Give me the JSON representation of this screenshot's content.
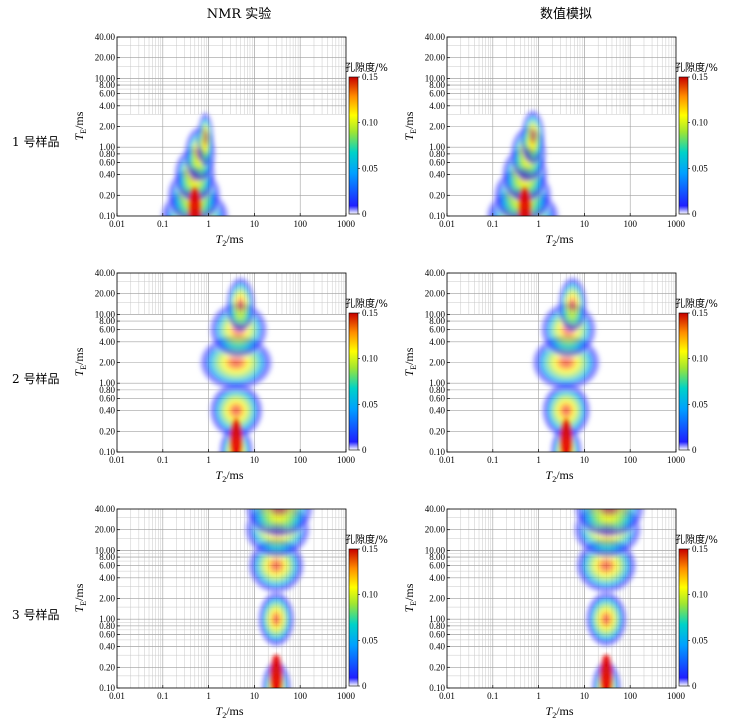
{
  "columns": [
    "NMR 实验",
    "数值模拟"
  ],
  "rows": [
    "1 号样品",
    "2 号样品",
    "3 号样品"
  ],
  "colorbar": {
    "title": "孔隙度/%",
    "ticks": [
      "0",
      "0.05",
      "0.10",
      "0.15"
    ],
    "range": [
      0,
      0.15
    ]
  },
  "axes": {
    "xlabel_main": "T",
    "xlabel_sub": "2",
    "xlabel_unit": "/ms",
    "ylabel_main": "T",
    "ylabel_sub": "E",
    "ylabel_unit": "/ms",
    "xticks": [
      "0.01",
      "0.1",
      "1",
      "10",
      "100",
      "1000"
    ],
    "yticks": [
      "0.10",
      "0.20",
      "0.40",
      "0.60",
      "0.80",
      "1.00",
      "2.00",
      "4.00",
      "6.00",
      "8.00",
      "10.00",
      "20.00",
      "40.00"
    ],
    "xlim": [
      0.01,
      1000
    ],
    "ylim": [
      0.1,
      40
    ],
    "xscale": "log",
    "yscale": "log"
  },
  "colors": {
    "low": "#1a1aff",
    "mid": "#00c8c8",
    "high": "#ffff00",
    "peak": "#e60000",
    "grid": "#9a9a9a"
  },
  "chart_data": [
    {
      "type": "heatmap",
      "panel": "1 号样品 NMR 实验",
      "peak": {
        "T2": 0.5,
        "TE": 0.13
      },
      "ridge": [
        {
          "TE": 0.1,
          "T2": 0.5,
          "w": 1.4
        },
        {
          "TE": 0.2,
          "T2": 0.48,
          "w": 1.1
        },
        {
          "TE": 0.4,
          "T2": 0.5,
          "w": 0.85
        },
        {
          "TE": 0.8,
          "T2": 0.65,
          "w": 0.65
        },
        {
          "TE": 1.3,
          "T2": 0.85,
          "w": 0.35
        }
      ],
      "grid_region": {
        "T2_from": 2,
        "TE_from": 3
      }
    },
    {
      "type": "heatmap",
      "panel": "1 号样品 数值模拟",
      "peak": {
        "T2": 0.5,
        "TE": 0.13
      },
      "ridge": [
        {
          "TE": 0.1,
          "T2": 0.45,
          "w": 1.5
        },
        {
          "TE": 0.2,
          "T2": 0.45,
          "w": 1.2
        },
        {
          "TE": 0.4,
          "T2": 0.5,
          "w": 0.95
        },
        {
          "TE": 0.8,
          "T2": 0.6,
          "w": 0.75
        },
        {
          "TE": 1.4,
          "T2": 0.75,
          "w": 0.5
        }
      ],
      "grid_region": {
        "T2_from": 3,
        "TE_from": 3
      }
    },
    {
      "type": "heatmap",
      "panel": "2 号样品 NMR 实验",
      "peak": {
        "T2": 4,
        "TE": 0.15
      },
      "ridge": [
        {
          "TE": 0.1,
          "T2": 4,
          "w": 0.7
        },
        {
          "TE": 0.4,
          "T2": 4,
          "w": 1.1
        },
        {
          "TE": 2,
          "T2": 4,
          "w": 1.5
        },
        {
          "TE": 6,
          "T2": 4.5,
          "w": 1.2
        },
        {
          "TE": 14,
          "T2": 5,
          "w": 0.6
        }
      ],
      "grid_region": {
        "T2_from": 20,
        "TE_from": 10
      }
    },
    {
      "type": "heatmap",
      "panel": "2 号样品 数值模拟",
      "peak": {
        "T2": 4,
        "TE": 0.15
      },
      "ridge": [
        {
          "TE": 0.1,
          "T2": 4,
          "w": 0.65
        },
        {
          "TE": 0.4,
          "T2": 4,
          "w": 1.0
        },
        {
          "TE": 2,
          "T2": 4,
          "w": 1.4
        },
        {
          "TE": 6,
          "T2": 4.5,
          "w": 1.15
        },
        {
          "TE": 14,
          "T2": 5.5,
          "w": 0.6
        }
      ],
      "grid_region": {
        "T2_from": 20,
        "TE_from": 10
      }
    },
    {
      "type": "heatmap",
      "panel": "3 号样品 NMR 实验",
      "peak": {
        "T2": 30,
        "TE": 0.15
      },
      "ridge": [
        {
          "TE": 0.1,
          "T2": 30,
          "w": 0.6
        },
        {
          "TE": 1,
          "T2": 30,
          "w": 0.75
        },
        {
          "TE": 6,
          "T2": 30,
          "w": 1.15
        },
        {
          "TE": 20,
          "T2": 32,
          "w": 1.35
        },
        {
          "TE": 40,
          "T2": 35,
          "w": 1.4
        }
      ],
      "grid_region": {
        "T2_from": 0.01,
        "TE_from": 0.1
      }
    },
    {
      "type": "heatmap",
      "panel": "3 号样品 数值模拟",
      "peak": {
        "T2": 30,
        "TE": 0.15
      },
      "ridge": [
        {
          "TE": 0.1,
          "T2": 30,
          "w": 0.6
        },
        {
          "TE": 1,
          "T2": 30,
          "w": 0.85
        },
        {
          "TE": 6,
          "T2": 30,
          "w": 1.25
        },
        {
          "TE": 20,
          "T2": 32,
          "w": 1.4
        },
        {
          "TE": 40,
          "T2": 35,
          "w": 1.45
        }
      ],
      "grid_region": {
        "T2_from": 0.01,
        "TE_from": 0.1
      }
    }
  ]
}
